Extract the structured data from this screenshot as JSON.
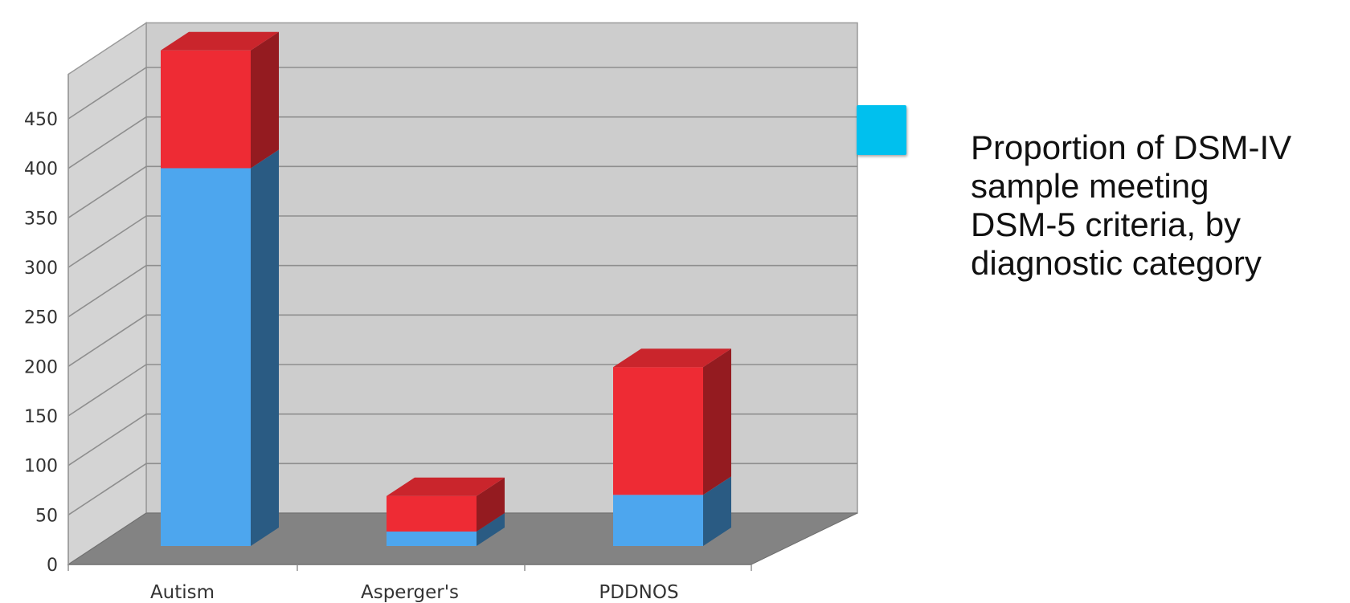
{
  "chart_data": {
    "type": "bar",
    "stacked": true,
    "three_d": true,
    "categories": [
      "Autism",
      "Asperger's",
      "PDDNOS"
    ],
    "series": [
      {
        "values": [
          340,
          13,
          46
        ],
        "color": "#4da6ee"
      },
      {
        "values": [
          106,
          32,
          115
        ],
        "color": "#ee2b34"
      }
    ],
    "yticks": [
      0,
      50,
      100,
      150,
      200,
      250,
      300,
      350,
      400,
      450
    ],
    "ylim": [
      0,
      500
    ],
    "grid": true,
    "legend": {
      "position": "right",
      "swatch_color": "#00c0ee",
      "text": "Proportion of DSM-IV\nsample meeting\nDSM-5 criteria, by\ndiagnostic category"
    },
    "title": "",
    "xlabel": "",
    "ylabel": ""
  }
}
